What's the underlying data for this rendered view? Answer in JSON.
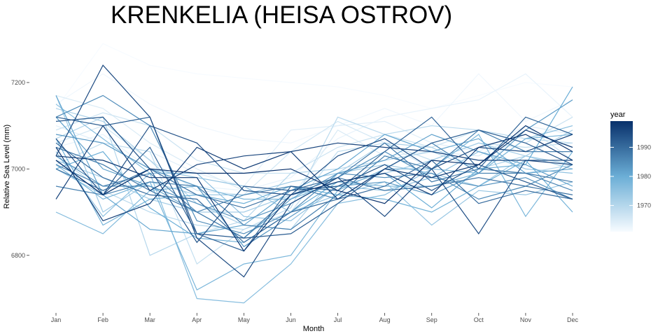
{
  "chart_data": {
    "type": "line",
    "title": "KRENKELIA (HEISA OSTROV)",
    "xlabel": "Month",
    "ylabel": "Relative Sea Level (mm)",
    "categories": [
      "Jan",
      "Feb",
      "Mar",
      "Apr",
      "May",
      "Jun",
      "Jul",
      "Aug",
      "Sep",
      "Oct",
      "Nov",
      "Dec"
    ],
    "ylim": [
      6670,
      7310
    ],
    "yticks": [
      6800,
      7000,
      7200
    ],
    "grid": false,
    "legend": {
      "title": "year",
      "placement": "right",
      "type": "colorbar",
      "range": [
        1961,
        1999
      ],
      "ticks": [
        1970,
        1980,
        1990
      ],
      "low_color": "#f7fbff",
      "high_color": "#08306b"
    },
    "series": [
      {
        "year": 1961,
        "values": [
          7140,
          7290,
          7240,
          7220,
          7210,
          7200,
          7190,
          7170,
          7140,
          7170,
          7200,
          7190
        ]
      },
      {
        "year": 1962,
        "values": [
          7150,
          7220,
          7150,
          7100,
          7070,
          7060,
          7100,
          7140,
          7100,
          7220,
          7110,
          7160
        ]
      },
      {
        "year": 1963,
        "values": [
          7050,
          7080,
          7000,
          6960,
          6950,
          6980,
          7070,
          7120,
          7140,
          7160,
          7220,
          7120
        ]
      },
      {
        "year": 1964,
        "values": [
          7100,
          7060,
          7040,
          6990,
          6960,
          7090,
          7100,
          7110,
          7060,
          7040,
          7100,
          7080
        ]
      },
      {
        "year": 1965,
        "values": [
          7170,
          7140,
          7060,
          7000,
          6950,
          6930,
          7090,
          7030,
          7040,
          7030,
          7090,
          7050
        ]
      },
      {
        "year": 1966,
        "values": [
          7060,
          7100,
          7020,
          6950,
          6940,
          7040,
          7110,
          7060,
          7000,
          6990,
          7100,
          7020
        ]
      },
      {
        "year": 1967,
        "values": [
          7090,
          7130,
          7100,
          7020,
          6990,
          6990,
          7050,
          7080,
          7050,
          7090,
          7060,
          7120
        ]
      },
      {
        "year": 1968,
        "values": [
          7010,
          7060,
          7040,
          6780,
          6860,
          6900,
          7040,
          7060,
          7020,
          7060,
          7050,
          7060
        ]
      },
      {
        "year": 1969,
        "values": [
          7030,
          6950,
          6900,
          6870,
          6860,
          6910,
          7120,
          7080,
          7100,
          7090,
          7070,
          7060
        ]
      },
      {
        "year": 1970,
        "values": [
          7070,
          7120,
          6800,
          6850,
          6880,
          6990,
          7000,
          7020,
          7040,
          7000,
          6990,
          7010
        ]
      },
      {
        "year": 1971,
        "values": [
          7140,
          7110,
          7020,
          6920,
          6870,
          6860,
          6990,
          7060,
          7050,
          7000,
          7030,
          7090
        ]
      },
      {
        "year": 1972,
        "values": [
          7020,
          6980,
          6930,
          6900,
          6900,
          6940,
          6960,
          6990,
          7020,
          7060,
          7030,
          7000
        ]
      },
      {
        "year": 1973,
        "values": [
          7170,
          6900,
          6970,
          6940,
          6940,
          6970,
          6990,
          7010,
          6990,
          6960,
          7030,
          7010
        ]
      },
      {
        "year": 1974,
        "values": [
          7000,
          6940,
          7000,
          6980,
          6960,
          6900,
          6940,
          6970,
          6870,
          6950,
          6940,
          6970
        ]
      },
      {
        "year": 1975,
        "values": [
          7040,
          6890,
          6990,
          6990,
          6890,
          6880,
          6960,
          6950,
          6980,
          7040,
          7000,
          6990
        ]
      },
      {
        "year": 1976,
        "values": [
          7150,
          7070,
          6990,
          6700,
          6690,
          6780,
          6920,
          6940,
          7000,
          6990,
          7070,
          7100
        ]
      },
      {
        "year": 1977,
        "values": [
          6900,
          6850,
          6950,
          6960,
          6930,
          6930,
          6970,
          6960,
          6960,
          6990,
          7070,
          7080
        ]
      },
      {
        "year": 1978,
        "values": [
          7010,
          6930,
          6970,
          6720,
          6780,
          6800,
          6950,
          7000,
          7000,
          7080,
          6890,
          7040
        ]
      },
      {
        "year": 1979,
        "values": [
          7070,
          6870,
          6930,
          6940,
          6920,
          6960,
          6940,
          6930,
          6900,
          6960,
          7020,
          6900
        ]
      },
      {
        "year": 1980,
        "values": [
          7000,
          7040,
          6910,
          6840,
          6830,
          6900,
          6970,
          6990,
          6910,
          7000,
          7010,
          7190
        ]
      },
      {
        "year": 1981,
        "values": [
          7170,
          6940,
          6860,
          6850,
          6870,
          6950,
          7000,
          7080,
          7040,
          7070,
          6990,
          7000
        ]
      },
      {
        "year": 1982,
        "values": [
          7120,
          7000,
          6960,
          6900,
          6840,
          6930,
          6990,
          7020,
          7080,
          7040,
          7010,
          6960
        ]
      },
      {
        "year": 1983,
        "values": [
          7080,
          7060,
          7000,
          6960,
          6820,
          6890,
          6960,
          6970,
          6940,
          6990,
          7090,
          7160
        ]
      },
      {
        "year": 1984,
        "values": [
          7030,
          6960,
          6960,
          6920,
          6880,
          6920,
          6980,
          7040,
          6980,
          6960,
          6980,
          6930
        ]
      },
      {
        "year": 1985,
        "values": [
          7120,
          7170,
          7100,
          6880,
          6850,
          6900,
          6990,
          6980,
          6990,
          6930,
          6960,
          7010
        ]
      },
      {
        "year": 1986,
        "values": [
          7010,
          6960,
          6990,
          6900,
          6940,
          6960,
          6930,
          7000,
          7060,
          6990,
          6990,
          6950
        ]
      },
      {
        "year": 1987,
        "values": [
          6960,
          6940,
          6970,
          6960,
          6870,
          6860,
          6940,
          7030,
          7000,
          7090,
          7040,
          7040
        ]
      },
      {
        "year": 1988,
        "values": [
          7050,
          7010,
          6950,
          6900,
          6840,
          6940,
          6980,
          7060,
          6970,
          7000,
          6990,
          6970
        ]
      },
      {
        "year": 1989,
        "values": [
          7000,
          6950,
          7000,
          6940,
          6910,
          6950,
          6980,
          6950,
          6960,
          6980,
          6960,
          6940
        ]
      },
      {
        "year": 1990,
        "values": [
          7060,
          6980,
          6940,
          6930,
          6830,
          6900,
          6930,
          6960,
          7020,
          6920,
          6950,
          6930
        ]
      },
      {
        "year": 1991,
        "values": [
          7020,
          6940,
          7050,
          6850,
          6810,
          6960,
          6950,
          7040,
          7120,
          7000,
          7120,
          7080
        ]
      },
      {
        "year": 1992,
        "values": [
          7120,
          7100,
          7120,
          6850,
          6840,
          6850,
          6920,
          7000,
          7060,
          7090,
          7060,
          7010
        ]
      },
      {
        "year": 1993,
        "values": [
          7110,
          7120,
          7000,
          6830,
          6960,
          6950,
          6960,
          7010,
          6950,
          7010,
          6970,
          6930
        ]
      },
      {
        "year": 1994,
        "values": [
          7070,
          6940,
          7100,
          7060,
          6950,
          6940,
          7030,
          7070,
          7000,
          6850,
          7020,
          7020
        ]
      },
      {
        "year": 1995,
        "values": [
          7030,
          7240,
          7120,
          6840,
          6750,
          6920,
          6980,
          6890,
          7000,
          7050,
          7040,
          7080
        ]
      },
      {
        "year": 1996,
        "values": [
          6930,
          7100,
          6950,
          7010,
          7030,
          7040,
          7060,
          7050,
          7040,
          7020,
          7020,
          7010
        ]
      },
      {
        "year": 1997,
        "values": [
          7050,
          6880,
          6920,
          7050,
          7000,
          7040,
          6930,
          7000,
          6980,
          7010,
          7090,
          7050
        ]
      },
      {
        "year": 1998,
        "values": [
          7030,
          7020,
          6980,
          6980,
          6810,
          6940,
          6970,
          6990,
          6940,
          7050,
          7080,
          7020
        ]
      },
      {
        "year": 1999,
        "values": [
          7020,
          6940,
          7000,
          6990,
          6990,
          7000,
          6950,
          6920,
          7020,
          7010,
          7100,
          7040
        ]
      }
    ]
  }
}
